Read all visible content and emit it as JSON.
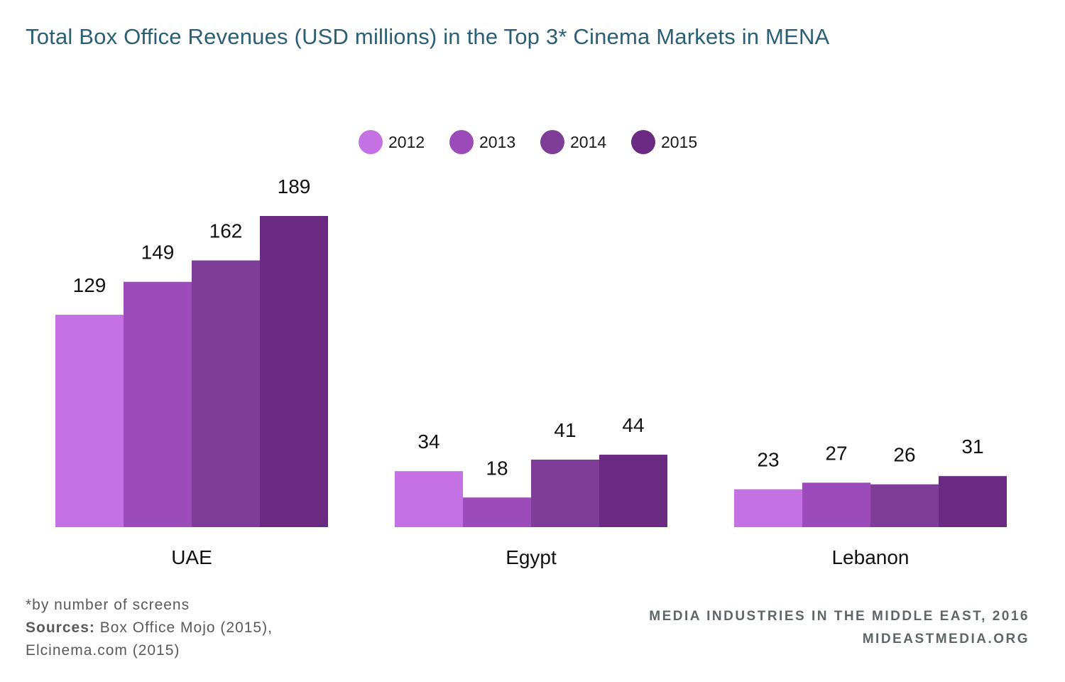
{
  "title": "Total Box Office Revenues (USD millions) in the Top 3* Cinema Markets in MENA",
  "footnote": {
    "note": "*by number of screens",
    "sources_label": "Sources:",
    "sources_line1": "Box Office Mojo (2015),",
    "sources_line2": "Elcinema.com (2015)"
  },
  "credit": {
    "line1": "MEDIA INDUSTRIES IN THE MIDDLE EAST, 2016",
    "line2": "MIDEASTMEDIA.ORG"
  },
  "colors": {
    "title": "#2a5f74",
    "series": [
      "#c471e4",
      "#9b4bba",
      "#7e3d96",
      "#6a2a82"
    ]
  },
  "chart_data": {
    "type": "bar",
    "categories": [
      "UAE",
      "Egypt",
      "Lebanon"
    ],
    "series": [
      {
        "name": "2012",
        "values": [
          129,
          34,
          23
        ]
      },
      {
        "name": "2013",
        "values": [
          149,
          18,
          27
        ]
      },
      {
        "name": "2014",
        "values": [
          162,
          41,
          26
        ]
      },
      {
        "name": "2015",
        "values": [
          189,
          44,
          31
        ]
      }
    ],
    "title": "Total Box Office Revenues (USD millions) in the Top 3* Cinema Markets in MENA",
    "xlabel": "",
    "ylabel": "",
    "ylim": [
      0,
      189
    ],
    "grid": false,
    "legend_position": "top-center",
    "data_labels": true
  }
}
